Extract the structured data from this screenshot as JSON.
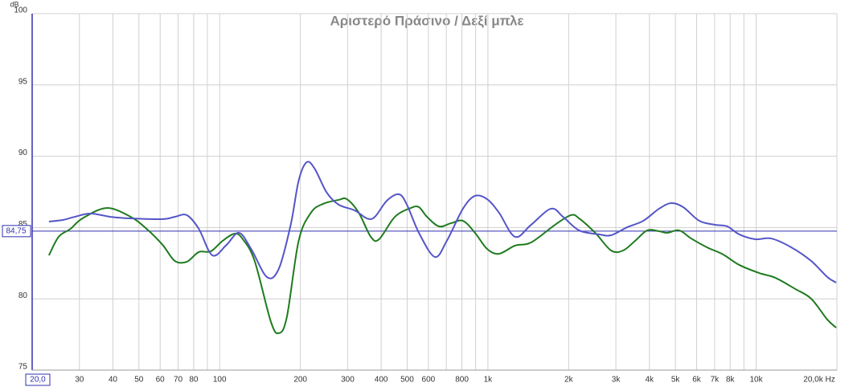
{
  "chart_data": {
    "type": "line",
    "title": "Αριστερό Πράσινο / Δεξί μπλε",
    "y_label": "dB",
    "log_x": true,
    "grid": true,
    "xlim": [
      20,
      20000
    ],
    "ylim": [
      75,
      100
    ],
    "xticks": [
      {
        "value": 20,
        "label": "20,0"
      },
      30,
      40,
      50,
      60,
      70,
      80,
      100,
      200,
      300,
      400,
      500,
      600,
      800,
      {
        "value": 1000,
        "label": "1k"
      },
      {
        "value": 2000,
        "label": "2k"
      },
      {
        "value": 3000,
        "label": "3k"
      },
      {
        "value": 4000,
        "label": "4k"
      },
      {
        "value": 5000,
        "label": "5k"
      },
      {
        "value": 6000,
        "label": "6k"
      },
      {
        "value": 7000,
        "label": "7k"
      },
      {
        "value": 8000,
        "label": "8k"
      },
      {
        "value": 10000,
        "label": "10k"
      },
      {
        "value": 20000,
        "label": "20,0k Hz"
      }
    ],
    "minor_xticks": [
      90,
      700,
      900,
      9000
    ],
    "yticks": [
      75,
      80,
      85,
      90,
      95,
      100
    ],
    "reference_line": {
      "value": 84.75,
      "label": "84,75",
      "color": "#3030b0"
    },
    "series": [
      {
        "name": "Αριστερό",
        "color": "#1e7b1e",
        "x": [
          23.1,
          25.1,
          27.8,
          30.8,
          37.9,
          46.6,
          53.4,
          61.3,
          68,
          75.4,
          83.6,
          92.7,
          102.6,
          114,
          122,
          135,
          155,
          166,
          178,
          197,
          219,
          243,
          278,
          298,
          330,
          366,
          393,
          450,
          516,
          553,
          593,
          657,
          728,
          807,
          895,
          993,
          1100,
          1262,
          1448,
          1778,
          2041,
          2188,
          2512,
          2878,
          3192,
          3540,
          3926,
          4347,
          4658,
          5164,
          5726,
          6562,
          7533,
          8648,
          10260,
          11780,
          13990,
          16030,
          18410,
          19870
        ],
        "values": [
          83.05,
          84.35,
          84.91,
          85.64,
          86.37,
          85.75,
          84.91,
          83.78,
          82.66,
          82.6,
          83.28,
          83.33,
          84.07,
          84.57,
          84.18,
          82.66,
          78.43,
          77.59,
          78.72,
          84.07,
          86.04,
          86.66,
          86.94,
          86.99,
          86.04,
          84.35,
          84.18,
          85.75,
          86.37,
          86.43,
          85.75,
          85.08,
          85.3,
          85.47,
          84.63,
          83.5,
          83.16,
          83.73,
          83.95,
          85.19,
          85.87,
          85.64,
          84.63,
          83.39,
          83.39,
          84.07,
          84.8,
          84.74,
          84.63,
          84.8,
          84.23,
          83.61,
          83.11,
          82.38,
          81.81,
          81.48,
          80.69,
          80.01,
          78.55,
          77.98
        ]
      },
      {
        "name": "Δεξί",
        "color": "#5555c8",
        "x": [
          23.1,
          26,
          28.8,
          33,
          39.2,
          46.6,
          61.3,
          68,
          75.4,
          83.6,
          93.9,
          106,
          118,
          131,
          150,
          166,
          184,
          197,
          211,
          226,
          251,
          278,
          319,
          354,
          379,
          420,
          466,
          499,
          553,
          634,
          703,
          807,
          895,
          993,
          1100,
          1262,
          1448,
          1718,
          1906,
          2188,
          2594,
          2878,
          3304,
          3793,
          4347,
          4822,
          5345,
          6137,
          7030,
          7800,
          8648,
          9930,
          11390,
          13520,
          16030,
          18410,
          19870
        ],
        "values": [
          85.42,
          85.53,
          85.75,
          85.98,
          85.75,
          85.64,
          85.59,
          85.75,
          85.87,
          84.91,
          83.05,
          83.78,
          84.63,
          83.5,
          81.53,
          82.09,
          85.19,
          88.29,
          89.58,
          89.13,
          87.44,
          86.6,
          86.2,
          85.64,
          85.75,
          86.88,
          87.33,
          86.6,
          84.63,
          82.94,
          84.07,
          86.32,
          87.22,
          86.99,
          86.04,
          84.35,
          85.19,
          86.32,
          85.75,
          84.8,
          84.52,
          84.46,
          85.02,
          85.47,
          86.32,
          86.71,
          86.43,
          85.47,
          85.19,
          85.08,
          84.52,
          84.18,
          84.23,
          83.61,
          82.66,
          81.53,
          81.14
        ]
      }
    ]
  }
}
